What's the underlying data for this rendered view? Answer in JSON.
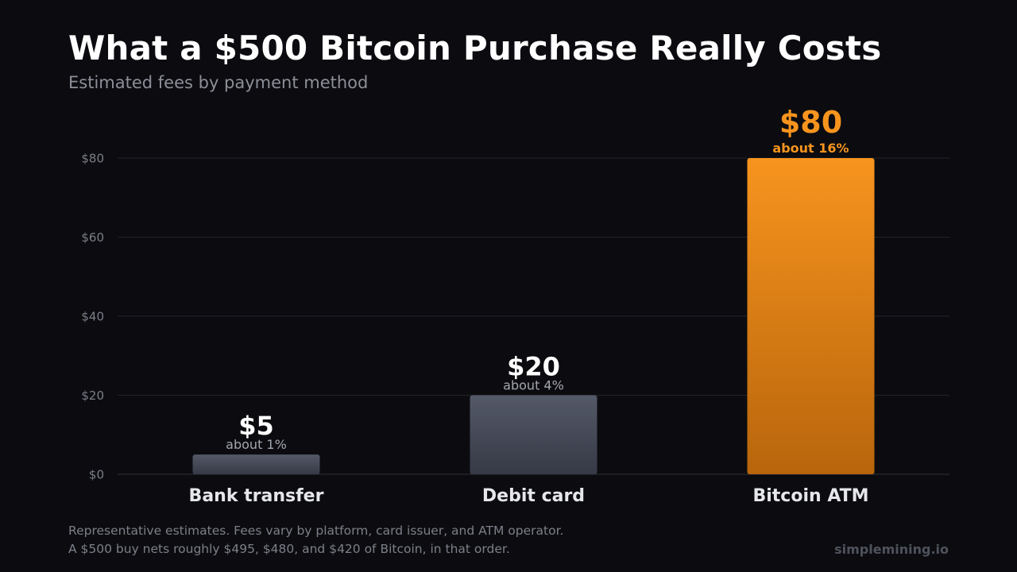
{
  "header": {
    "title": "What a $500 Bitcoin Purchase Really Costs",
    "subtitle": "Estimated fees by payment method"
  },
  "footer": {
    "note_line1": "Representative estimates. Fees vary by platform, card issuer, and ATM operator.",
    "note_line2": "A $500 buy nets roughly $495, $480, and $420 of Bitcoin, in that order.",
    "brand": "simplemining.io"
  },
  "colors": {
    "background": "#0c0c10",
    "grid": "#22232b",
    "axis_text": "#7b7e88",
    "grey_bar_top": "#545967",
    "grey_bar_bottom": "#363a47",
    "accent_top": "#f7941e",
    "accent_bottom": "#b8650c",
    "accent_text": "#f7941e",
    "secondary_text": "#a4a6ae",
    "category_text": "#e6e7ea"
  },
  "chart_data": {
    "type": "bar",
    "title": "What a $500 Bitcoin Purchase Really Costs",
    "subtitle": "Estimated fees by payment method",
    "categories": [
      "Bank transfer",
      "Debit card",
      "Bitcoin ATM"
    ],
    "values": [
      5,
      20,
      80
    ],
    "value_labels": [
      "$5",
      "$20",
      "$80"
    ],
    "percent_labels": [
      "about 1%",
      "about 4%",
      "about 16%"
    ],
    "highlight_index": 2,
    "ylim": [
      0,
      80
    ],
    "yticks": [
      0,
      20,
      40,
      60,
      80
    ],
    "ytick_labels": [
      "$0",
      "$20",
      "$40",
      "$60",
      "$80"
    ],
    "xlabel": "",
    "ylabel": "",
    "grid": true,
    "legend": "none"
  }
}
